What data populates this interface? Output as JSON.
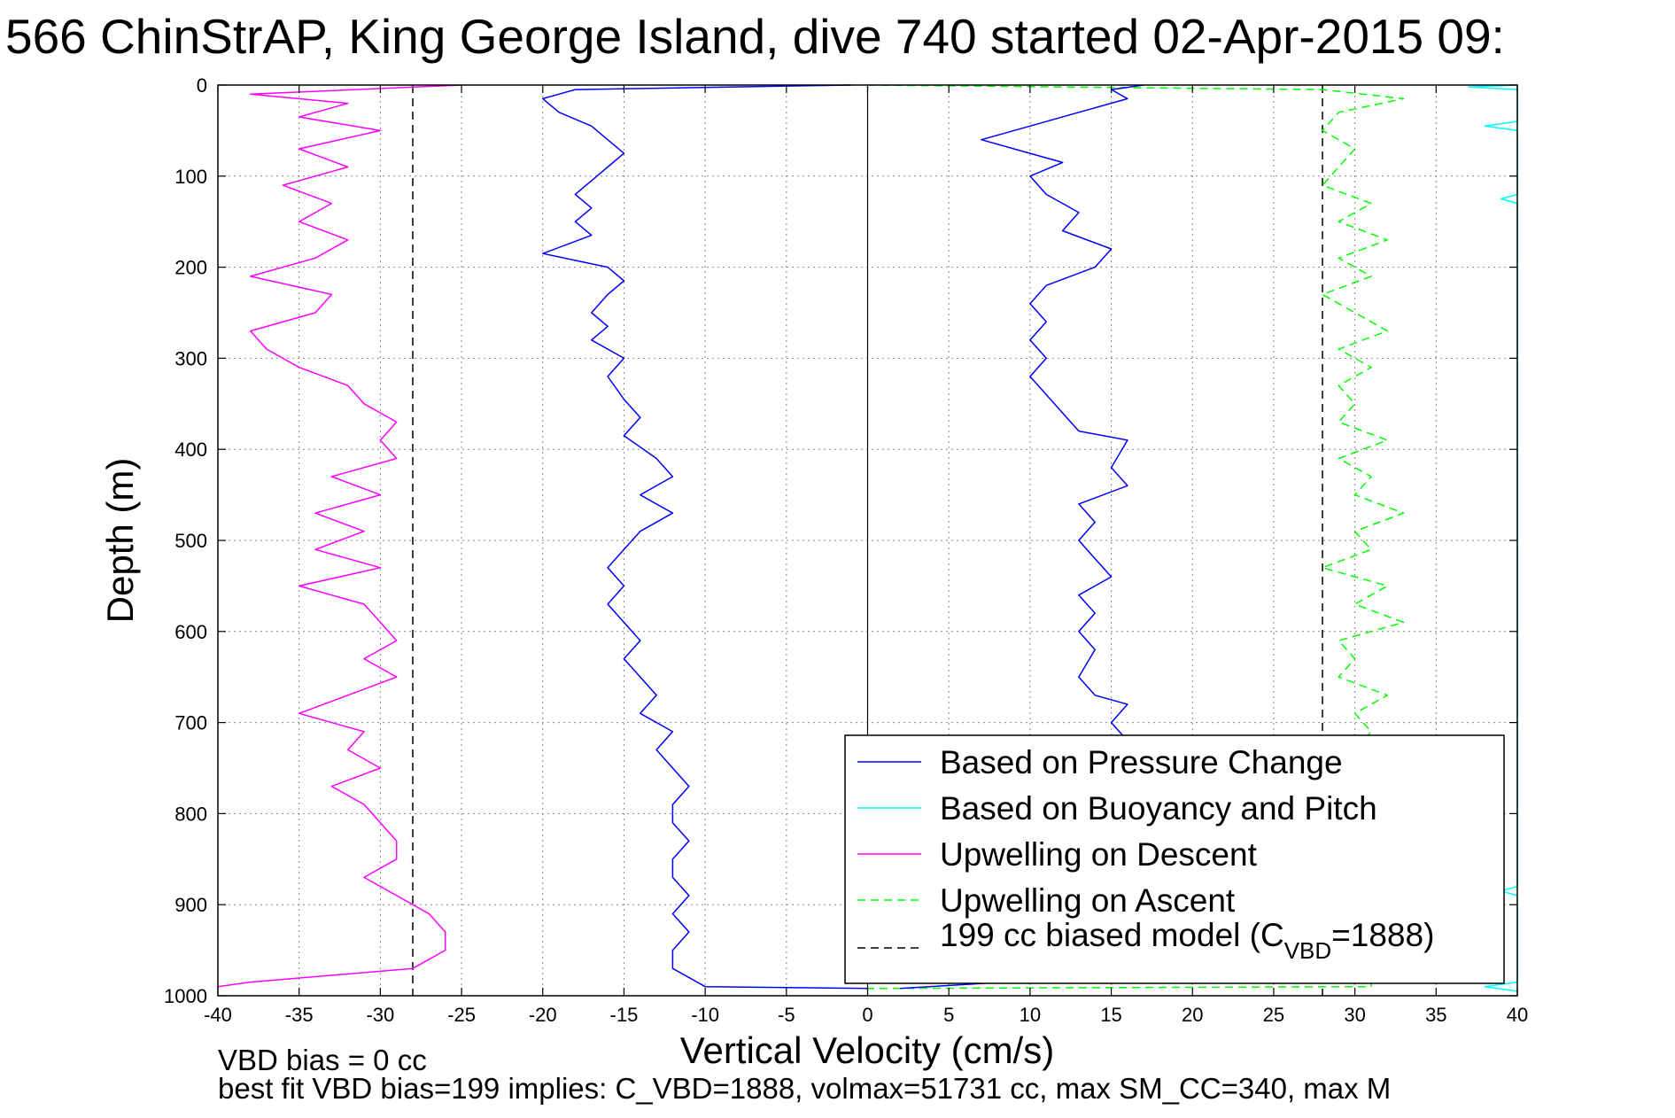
{
  "chart_data": {
    "type": "line",
    "title": "566 ChinStrAP, King George Island, dive 740 started 02-Apr-2015 09:",
    "xlabel": "Vertical Velocity (cm/s)",
    "ylabel": "Depth (m)",
    "xlim": [
      -40,
      40
    ],
    "ylim": [
      0,
      1000
    ],
    "y_reversed": true,
    "grid": "dotted",
    "x_ticks": [
      "-40",
      "-35",
      "-30",
      "-25",
      "-20",
      "-15",
      "-10",
      "-5",
      "0",
      "5",
      "10",
      "15",
      "20",
      "25",
      "30",
      "35",
      "40"
    ],
    "y_ticks": [
      "0",
      "100",
      "200",
      "300",
      "400",
      "500",
      "600",
      "700",
      "800",
      "900",
      "1000"
    ],
    "footer": [
      "VBD bias = 0 cc",
      "best fit VBD bias=199 implies: C_VBD=1888, volmax=51731 cc, max SM_CC=340, max M"
    ],
    "legend_position": "bottom-right",
    "model_label_prefix": "199 cc biased model (C",
    "model_label_sub": "VBD",
    "model_label_suffix": "=1888)",
    "series": [
      {
        "name": "Based on Pressure Change",
        "color": "#0000ff",
        "style": "solid",
        "descent": [
          [
            -1,
            0
          ],
          [
            -18,
            5
          ],
          [
            -20,
            15
          ],
          [
            -19,
            30
          ],
          [
            -17,
            45
          ],
          [
            -16,
            60
          ],
          [
            -15,
            75
          ],
          [
            -16,
            90
          ],
          [
            -17,
            105
          ],
          [
            -18,
            120
          ],
          [
            -17,
            135
          ],
          [
            -18,
            150
          ],
          [
            -17,
            165
          ],
          [
            -20,
            185
          ],
          [
            -16,
            200
          ],
          [
            -15,
            215
          ],
          [
            -16,
            230
          ],
          [
            -17,
            250
          ],
          [
            -16,
            265
          ],
          [
            -17,
            280
          ],
          [
            -15,
            300
          ],
          [
            -16,
            320
          ],
          [
            -15,
            345
          ],
          [
            -14,
            365
          ],
          [
            -15,
            385
          ],
          [
            -13,
            410
          ],
          [
            -12,
            430
          ],
          [
            -14,
            450
          ],
          [
            -12,
            470
          ],
          [
            -14,
            490
          ],
          [
            -15,
            510
          ],
          [
            -16,
            530
          ],
          [
            -15,
            550
          ],
          [
            -16,
            570
          ],
          [
            -15,
            590
          ],
          [
            -14,
            610
          ],
          [
            -15,
            630
          ],
          [
            -14,
            650
          ],
          [
            -13,
            670
          ],
          [
            -14,
            690
          ],
          [
            -12,
            710
          ],
          [
            -13,
            730
          ],
          [
            -12,
            750
          ],
          [
            -11,
            770
          ],
          [
            -12,
            790
          ],
          [
            -12,
            810
          ],
          [
            -11,
            830
          ],
          [
            -12,
            850
          ],
          [
            -12,
            870
          ],
          [
            -11,
            890
          ],
          [
            -12,
            910
          ],
          [
            -11,
            930
          ],
          [
            -12,
            950
          ],
          [
            -12,
            970
          ],
          [
            -10,
            990
          ],
          [
            0,
            992
          ]
        ],
        "ascent": [
          [
            2,
            992
          ],
          [
            13,
            980
          ],
          [
            15,
            950
          ],
          [
            14,
            900
          ],
          [
            15,
            870
          ],
          [
            16,
            720
          ],
          [
            15,
            700
          ],
          [
            16,
            680
          ],
          [
            14,
            670
          ],
          [
            13,
            650
          ],
          [
            14,
            620
          ],
          [
            13,
            600
          ],
          [
            14,
            580
          ],
          [
            13,
            560
          ],
          [
            15,
            540
          ],
          [
            14,
            520
          ],
          [
            13,
            500
          ],
          [
            14,
            480
          ],
          [
            13,
            460
          ],
          [
            16,
            440
          ],
          [
            15,
            420
          ],
          [
            16,
            390
          ],
          [
            13,
            380
          ],
          [
            12,
            360
          ],
          [
            11,
            340
          ],
          [
            10,
            320
          ],
          [
            11,
            300
          ],
          [
            10,
            280
          ],
          [
            11,
            260
          ],
          [
            10,
            240
          ],
          [
            11,
            220
          ],
          [
            14,
            200
          ],
          [
            15,
            180
          ],
          [
            12,
            160
          ],
          [
            13,
            140
          ],
          [
            11,
            120
          ],
          [
            10,
            100
          ],
          [
            12,
            85
          ],
          [
            7,
            60
          ],
          [
            10,
            45
          ],
          [
            13,
            30
          ],
          [
            16,
            15
          ],
          [
            15,
            5
          ],
          [
            17,
            0
          ]
        ]
      },
      {
        "name": "Based on Buoyancy and Pitch",
        "color": "#00ffff",
        "style": "solid",
        "descent": [],
        "ascent": [
          [
            40,
            0
          ],
          [
            37,
            2
          ],
          [
            40,
            5
          ],
          [
            40,
            40
          ],
          [
            38,
            45
          ],
          [
            40,
            50
          ],
          [
            40,
            120
          ],
          [
            39,
            125
          ],
          [
            40,
            130
          ],
          [
            40,
            880
          ],
          [
            39,
            885
          ],
          [
            40,
            890
          ],
          [
            40,
            985
          ],
          [
            38,
            990
          ],
          [
            40,
            995
          ]
        ]
      },
      {
        "name": "Upwelling on Descent",
        "color": "#ff00ff",
        "style": "solid",
        "descent": [
          [
            -25,
            0
          ],
          [
            -38,
            10
          ],
          [
            -32,
            20
          ],
          [
            -35,
            35
          ],
          [
            -30,
            50
          ],
          [
            -35,
            70
          ],
          [
            -32,
            90
          ],
          [
            -36,
            110
          ],
          [
            -33,
            130
          ],
          [
            -35,
            150
          ],
          [
            -32,
            170
          ],
          [
            -34,
            190
          ],
          [
            -38,
            210
          ],
          [
            -33,
            230
          ],
          [
            -34,
            250
          ],
          [
            -38,
            270
          ],
          [
            -37,
            290
          ],
          [
            -35,
            310
          ],
          [
            -32,
            330
          ],
          [
            -31,
            350
          ],
          [
            -29,
            370
          ],
          [
            -30,
            390
          ],
          [
            -29,
            410
          ],
          [
            -33,
            430
          ],
          [
            -30,
            450
          ],
          [
            -34,
            470
          ],
          [
            -31,
            490
          ],
          [
            -34,
            510
          ],
          [
            -30,
            530
          ],
          [
            -35,
            550
          ],
          [
            -31,
            570
          ],
          [
            -30,
            590
          ],
          [
            -29,
            610
          ],
          [
            -31,
            630
          ],
          [
            -29,
            650
          ],
          [
            -32,
            670
          ],
          [
            -35,
            690
          ],
          [
            -31,
            710
          ],
          [
            -32,
            730
          ],
          [
            -30,
            750
          ],
          [
            -33,
            770
          ],
          [
            -31,
            790
          ],
          [
            -30,
            810
          ],
          [
            -29,
            830
          ],
          [
            -29,
            850
          ],
          [
            -31,
            870
          ],
          [
            -29,
            890
          ],
          [
            -27,
            910
          ],
          [
            -26,
            930
          ],
          [
            -26,
            950
          ],
          [
            -28,
            970
          ],
          [
            -38,
            985
          ],
          [
            -40,
            990
          ]
        ],
        "ascent": []
      },
      {
        "name": "Upwelling on Ascent",
        "color": "#00ff00",
        "style": "dashed",
        "descent": [],
        "ascent": [
          [
            0,
            0
          ],
          [
            28,
            5
          ],
          [
            33,
            15
          ],
          [
            29,
            30
          ],
          [
            28,
            50
          ],
          [
            30,
            70
          ],
          [
            29,
            90
          ],
          [
            28,
            110
          ],
          [
            31,
            130
          ],
          [
            29,
            150
          ],
          [
            32,
            170
          ],
          [
            29,
            190
          ],
          [
            31,
            210
          ],
          [
            28,
            230
          ],
          [
            30,
            250
          ],
          [
            32,
            270
          ],
          [
            29,
            290
          ],
          [
            31,
            310
          ],
          [
            29,
            330
          ],
          [
            30,
            350
          ],
          [
            29,
            370
          ],
          [
            32,
            390
          ],
          [
            29,
            410
          ],
          [
            31,
            430
          ],
          [
            30,
            450
          ],
          [
            33,
            470
          ],
          [
            30,
            490
          ],
          [
            31,
            510
          ],
          [
            28,
            530
          ],
          [
            32,
            550
          ],
          [
            30,
            570
          ],
          [
            33,
            590
          ],
          [
            29,
            610
          ],
          [
            30,
            630
          ],
          [
            29,
            650
          ],
          [
            32,
            670
          ],
          [
            30,
            690
          ],
          [
            31,
            710
          ],
          [
            30,
            730
          ],
          [
            31,
            990
          ],
          [
            0,
            992
          ]
        ]
      },
      {
        "name": "199 cc biased model",
        "color": "#000000",
        "style": "dashed",
        "descent": [
          [
            -28,
            0
          ],
          [
            -28,
            1000
          ]
        ],
        "ascent": [
          [
            28,
            0
          ],
          [
            28,
            1000
          ]
        ]
      }
    ],
    "zero_line_x": 0
  }
}
